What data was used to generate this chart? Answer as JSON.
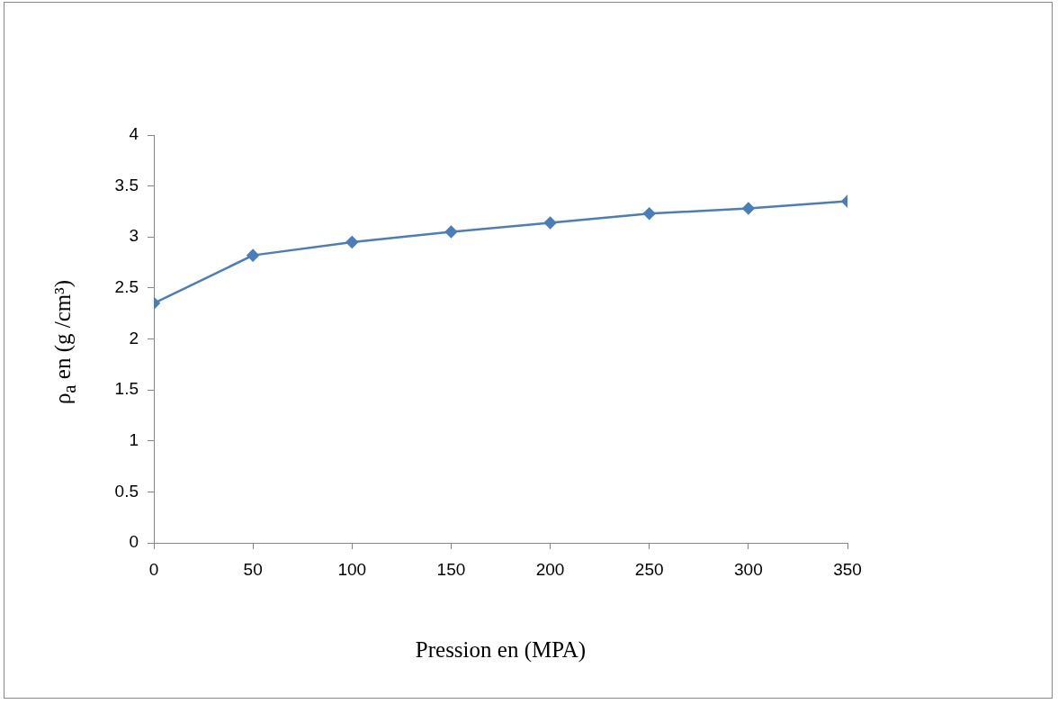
{
  "chart_data": {
    "type": "line",
    "xlabel": "Pression en (MPA)",
    "ylabel": "ρ$_{a}$ en (g /cm³)",
    "x": [
      0,
      50,
      100,
      150,
      200,
      250,
      300,
      350
    ],
    "series": [
      {
        "color": "#4a7ebb",
        "values": [
          2.35,
          2.82,
          2.95,
          3.05,
          3.14,
          3.23,
          3.28,
          3.35
        ]
      }
    ],
    "xlim": [
      0,
      350
    ],
    "xticks": [
      0,
      50,
      100,
      150,
      200,
      250,
      300,
      350
    ],
    "ylim": [
      0,
      4
    ],
    "yticks": [
      0,
      0.5,
      1,
      1.5,
      2,
      2.5,
      3,
      3.5,
      4
    ],
    "grid": false,
    "legend": false,
    "marker": "diamond",
    "line_style": "solid"
  }
}
